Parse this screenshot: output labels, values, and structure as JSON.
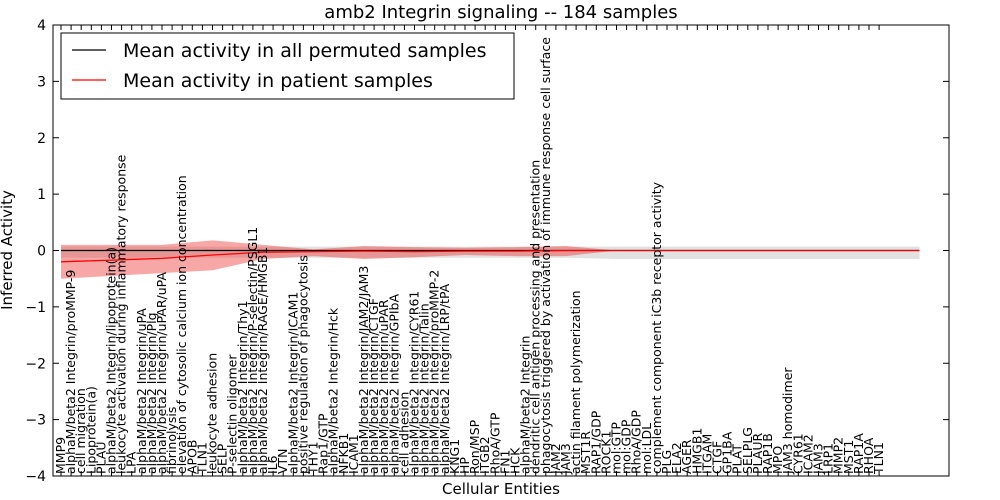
{
  "chart_data": {
    "type": "line",
    "title": "amb2 Integrin signaling -- 184 samples",
    "xlabel": "Cellular Entities",
    "ylabel": "Inferred Activity",
    "ylim": [
      -4,
      4
    ],
    "yticks": [
      "4",
      "3",
      "2",
      "1",
      "0",
      "−1",
      "−2",
      "−3",
      "−4"
    ],
    "legend": {
      "placement": "top-left",
      "entries": [
        {
          "label": "Mean activity in all permuted samples",
          "color": "#000000"
        },
        {
          "label": "Mean activity in patient samples",
          "color": "#ff0000"
        }
      ]
    },
    "categories": [
      "MMP9",
      "alphaM/beta2 Integrin/proMMP-9",
      "cell migration",
      "Lipoprotein(a)",
      "PLAU",
      "alphaM/beta2 Integrin/lipoprotein(a)",
      "leukocyte activation during inflammatory response",
      "LPA",
      "alphaM/beta2 Integrin/uPA",
      "alphaM/beta2 Integrin/Plg",
      "alphaM/beta2 Integrin/uPAR/uPA",
      "fibrinolysis",
      "elevation of cytosolic calcium ion concentration",
      "APOB",
      "TLN1",
      "leukocyte adhesion",
      "SELP",
      "P-selectin oligomer",
      "alphaM/beta2 Integrin/Thy1",
      "alphaM/beta2 Integrin/P-selectin/PSGL1",
      "alphaM/beta2 Integrin/RAGE/HMGB1",
      "IL6",
      "VTN",
      "alphaM/beta2 Integrin/ICAM1",
      "positive regulation of phagocytosis",
      "THY1",
      "Rap1/GTP",
      "alphaM/beta2 Integrin/Hck",
      "NFKB1",
      "ICAM1",
      "alphaM/beta2 Integrin/JAM2/JAM3",
      "alphaM/beta2 Integrin/CTGF",
      "alphaM/beta2 Integrin/uPAR",
      "alphaM/beta2 Integrin/GPIbA",
      "cell adhesion",
      "alphaM/beta2 Integrin/CYR61",
      "alphaM/beta2 Integrin/Talin",
      "alphaM/beta2 Integrin/proMMP-2",
      "alphaM/beta2 Integrin/LRP/tPA",
      "KNG1",
      "HP",
      "Ron/MSP",
      "ITGB2",
      "RhoA/GTP",
      "FN1",
      "HCK",
      "alphaM/beta2 Integrin",
      "dendritic cell antigen processing and presentation",
      "phagocytosis triggered by activation of immune response cell surface",
      "JAM2",
      "JAM3",
      "actin filament polymerization",
      "MST1R",
      "RAP1/GDP",
      "ROCK1",
      "mol:GTP",
      "mol:GDP",
      "RhoA/GDP",
      "mol:LDL",
      "complement component iC3b receptor activity",
      "PLG",
      "ELA2",
      "AGER",
      "HMGB1",
      "ITGAM",
      "CTGF",
      "GP1BA",
      "PLAT",
      "SELPLG",
      "PLAUR",
      "RAP1B",
      "MPO",
      "JAM3 homodimer",
      "CYR61",
      "ICAM2",
      "JAM3",
      "LRP1",
      "MMP2",
      "MST1",
      "RAP1A",
      "RHOA",
      "TLN1"
    ],
    "series": [
      {
        "name": "Mean activity in patient samples",
        "color": "#ff0000",
        "x": [
          0,
          5,
          10,
          15,
          20,
          25,
          30,
          35,
          40,
          45,
          50,
          55,
          60,
          65,
          70,
          75,
          80,
          85
        ],
        "values": [
          -0.2,
          -0.17,
          -0.14,
          -0.08,
          -0.03,
          -0.02,
          -0.01,
          -0.02,
          -0.01,
          -0.01,
          0.0,
          0.0,
          0.0,
          0.0,
          0.0,
          0.0,
          0.0,
          0.0
        ],
        "band_upper": [
          0.1,
          0.1,
          0.1,
          0.18,
          0.1,
          0.02,
          0.08,
          0.06,
          0.05,
          0.06,
          0.08,
          0.0,
          0.0,
          0.0,
          0.0,
          0.0,
          0.0,
          0.0
        ],
        "band_lower": [
          -0.5,
          -0.45,
          -0.4,
          -0.35,
          -0.15,
          -0.1,
          -0.15,
          -0.12,
          -0.08,
          -0.1,
          -0.1,
          0.0,
          0.0,
          0.0,
          0.0,
          0.0,
          0.0,
          0.0
        ]
      },
      {
        "name": "Mean activity in all permuted samples",
        "color": "#000000",
        "x": [
          0,
          5,
          10,
          15,
          20,
          25,
          30,
          35,
          40,
          45,
          50,
          55,
          60,
          65,
          70,
          75,
          80,
          85
        ],
        "values": [
          0.0,
          0.0,
          0.0,
          0.0,
          0.0,
          0.0,
          0.0,
          0.0,
          0.0,
          0.0,
          0.0,
          0.0,
          0.0,
          0.0,
          0.0,
          0.0,
          0.0,
          0.0
        ],
        "band_upper": [
          0.07,
          0.07,
          0.07,
          0.07,
          0.07,
          0.07,
          0.07,
          0.07,
          0.07,
          0.07,
          0.07,
          0.07,
          0.07,
          0.07,
          0.07,
          0.07,
          0.07,
          0.07
        ],
        "band_lower": [
          -0.13,
          -0.13,
          -0.13,
          -0.13,
          -0.13,
          -0.13,
          -0.13,
          -0.13,
          -0.13,
          -0.13,
          -0.13,
          -0.15,
          -0.15,
          -0.15,
          -0.15,
          -0.15,
          -0.15,
          -0.15
        ]
      }
    ]
  }
}
